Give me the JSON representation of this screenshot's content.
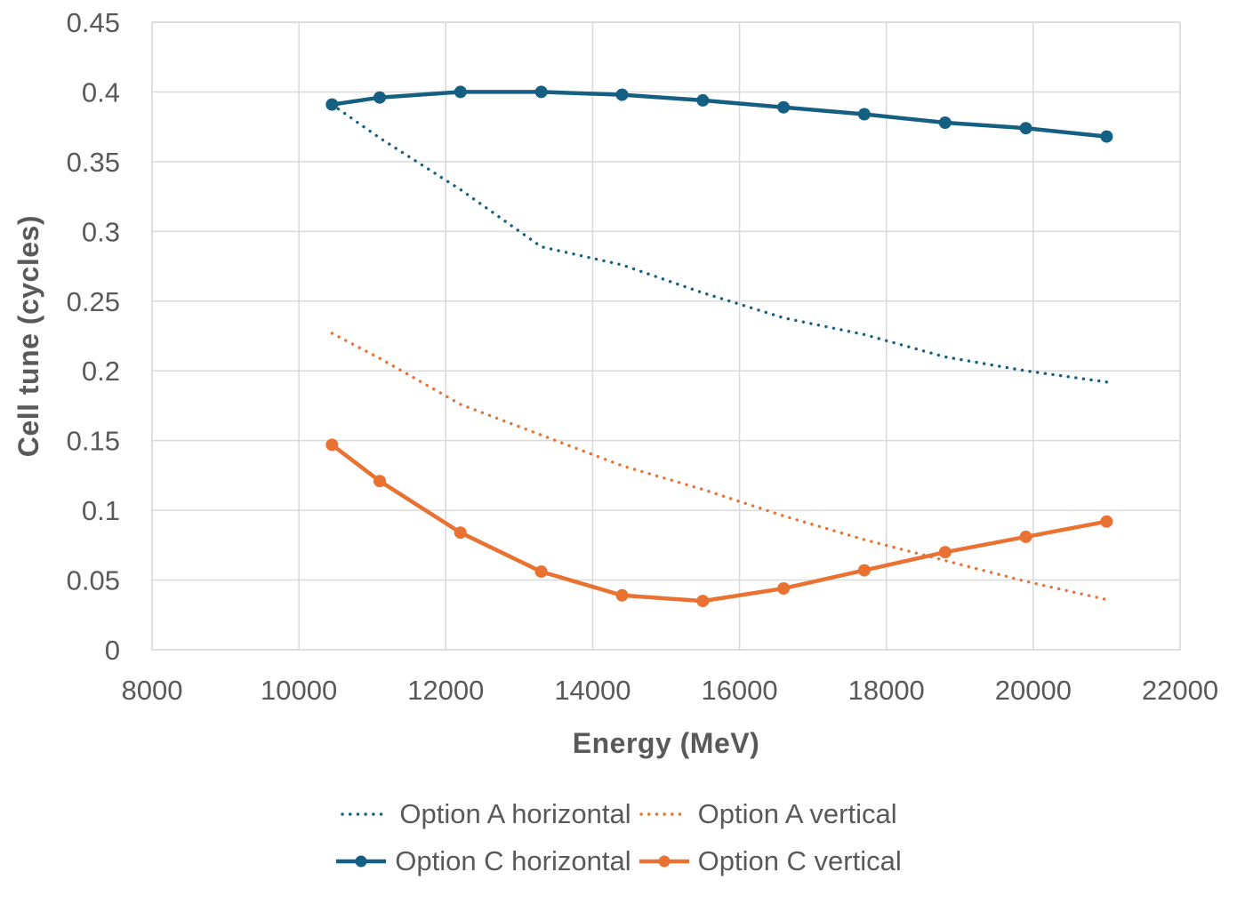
{
  "chart_data": {
    "type": "line",
    "title": "",
    "xlabel": "Energy (MeV)",
    "ylabel": "Cell tune (cycles)",
    "xlim": [
      8000,
      22000
    ],
    "xtick_step": 2000,
    "ylim": [
      0,
      0.45
    ],
    "ytick_step": 0.05,
    "grid": true,
    "legend_position": "bottom",
    "x": [
      10450,
      11100,
      12200,
      13300,
      14400,
      15500,
      16600,
      17700,
      18800,
      19900,
      21000
    ],
    "series": [
      {
        "name": "Option A horizontal",
        "color": "#156082",
        "style": "dotted",
        "markers": false,
        "values": [
          0.391,
          0.367,
          0.33,
          0.289,
          0.276,
          0.256,
          0.238,
          0.226,
          0.21,
          0.2,
          0.192
        ]
      },
      {
        "name": "Option A vertical",
        "color": "#E97132",
        "style": "dotted",
        "markers": false,
        "values": [
          0.227,
          0.209,
          0.176,
          0.154,
          0.132,
          0.115,
          0.096,
          0.079,
          0.064,
          0.049,
          0.036
        ]
      },
      {
        "name": "Option C horizontal",
        "color": "#156082",
        "style": "solid",
        "markers": true,
        "values": [
          0.391,
          0.396,
          0.4,
          0.4,
          0.398,
          0.394,
          0.389,
          0.384,
          0.378,
          0.374,
          0.368
        ]
      },
      {
        "name": "Option C vertical",
        "color": "#E97132",
        "style": "solid",
        "markers": true,
        "values": [
          0.147,
          0.121,
          0.084,
          0.056,
          0.039,
          0.035,
          0.044,
          0.057,
          0.07,
          0.081,
          0.092
        ]
      }
    ]
  },
  "style_colors": {
    "grid": "#D9D9D9",
    "tick_text": "#595959",
    "axis_title_text": "#595959",
    "legend_text": "#595959",
    "background": "#FFFFFF"
  }
}
